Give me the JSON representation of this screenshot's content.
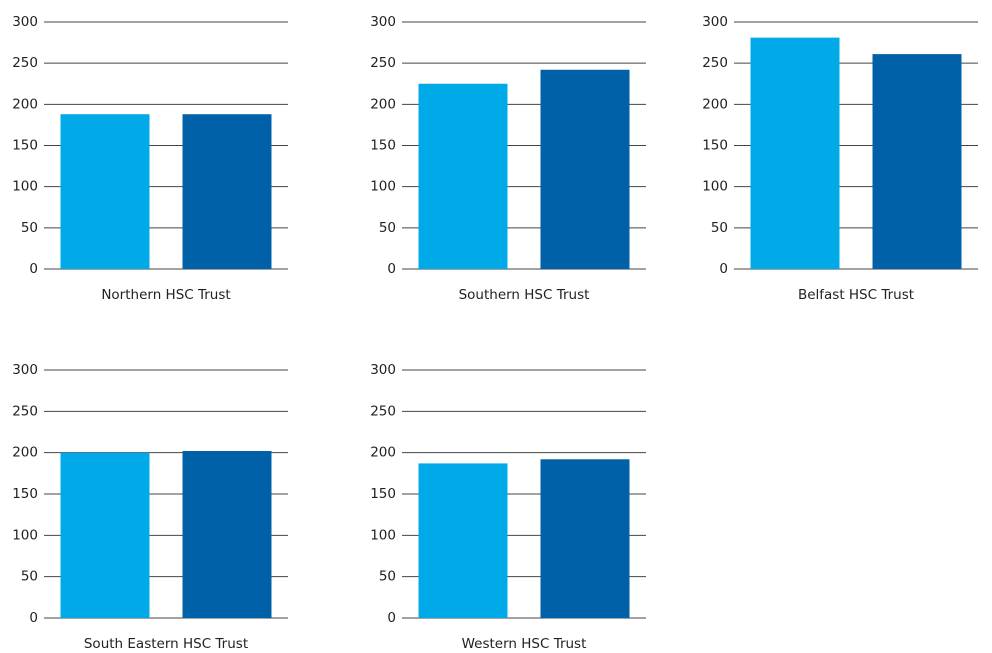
{
  "chart_data": [
    {
      "type": "bar",
      "title": "Northern HSC Trust",
      "categories": [
        null,
        null
      ],
      "values": [
        188,
        188
      ],
      "colors": [
        "#00a9e8",
        "#0061a8"
      ],
      "ylim": [
        0,
        300
      ],
      "yticks": [
        0,
        50,
        100,
        150,
        200,
        250,
        300
      ],
      "grid": true
    },
    {
      "type": "bar",
      "title": "Southern HSC Trust",
      "categories": [
        null,
        null
      ],
      "values": [
        225,
        242
      ],
      "colors": [
        "#00a9e8",
        "#0061a8"
      ],
      "ylim": [
        0,
        300
      ],
      "yticks": [
        0,
        50,
        100,
        150,
        200,
        250,
        300
      ],
      "grid": true
    },
    {
      "type": "bar",
      "title": "Belfast HSC Trust",
      "categories": [
        null,
        null
      ],
      "values": [
        281,
        261
      ],
      "colors": [
        "#00a9e8",
        "#0061a8"
      ],
      "ylim": [
        0,
        300
      ],
      "yticks": [
        0,
        50,
        100,
        150,
        200,
        250,
        300
      ],
      "grid": true
    },
    {
      "type": "bar",
      "title": "South Eastern HSC Trust",
      "categories": [
        null,
        null
      ],
      "values": [
        200,
        202
      ],
      "colors": [
        "#00a9e8",
        "#0061a8"
      ],
      "ylim": [
        0,
        300
      ],
      "yticks": [
        0,
        50,
        100,
        150,
        200,
        250,
        300
      ],
      "grid": true
    },
    {
      "type": "bar",
      "title": "Western HSC Trust",
      "categories": [
        null,
        null
      ],
      "values": [
        187,
        192
      ],
      "colors": [
        "#00a9e8",
        "#0061a8"
      ],
      "ylim": [
        0,
        300
      ],
      "yticks": [
        0,
        50,
        100,
        150,
        200,
        250,
        300
      ],
      "grid": true
    }
  ]
}
